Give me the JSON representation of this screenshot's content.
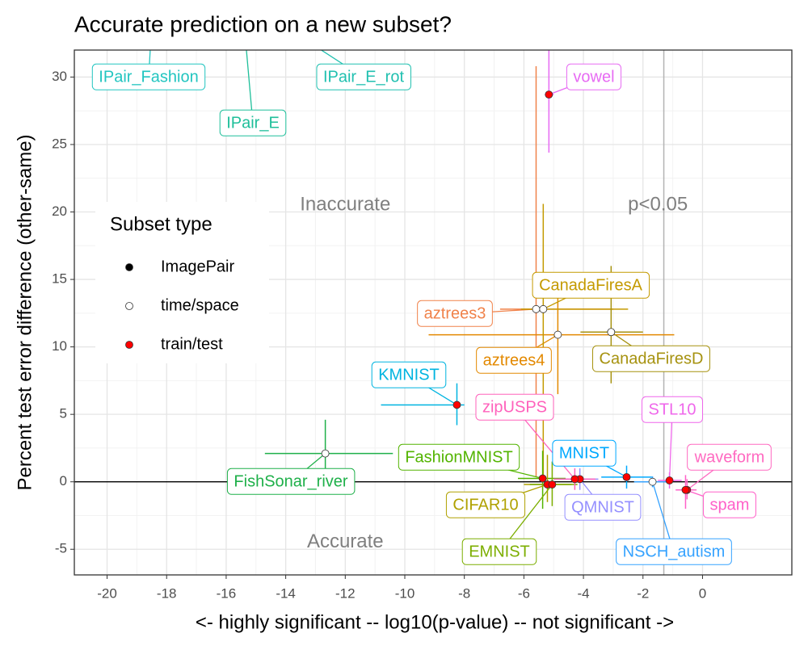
{
  "chart_data": {
    "type": "scatter",
    "title": "Accurate prediction on a new subset?",
    "x_label": "<- highly significant -- log10(p-value) -- not significant ->",
    "y_label": "Percent test error difference (other-same)",
    "xlim": [
      -21.1,
      3.0
    ],
    "ylim": [
      -6.9,
      32
    ],
    "xticks": [
      -20,
      -18,
      -16,
      -14,
      -12,
      -10,
      -8,
      -6,
      -4,
      -2,
      0
    ],
    "yticks": [
      -5,
      0,
      5,
      10,
      15,
      20,
      25,
      30
    ],
    "grid": true,
    "hline": 0,
    "vline": -1.3,
    "annotations": [
      {
        "text": "Inaccurate",
        "x": -12,
        "y": 20.5
      },
      {
        "text": "p<0.05",
        "x": -1.5,
        "y": 20.5
      },
      {
        "text": "Accurate",
        "x": -12,
        "y": -4.5
      }
    ],
    "legend": {
      "title": "Subset type",
      "items": [
        {
          "name": "ImagePair",
          "fill": "#000000"
        },
        {
          "name": "time/space",
          "fill": "#ffffff"
        },
        {
          "name": "train/test",
          "fill": "#ff0000"
        }
      ]
    },
    "series": [
      {
        "name": "vowel",
        "color": "#e76bf3",
        "subset": 2,
        "x": -5.16,
        "y": 28.7,
        "x_interval": [
          -5.3,
          -5.0
        ],
        "y_interval": [
          24.4,
          34
        ]
      },
      {
        "name": "aztrees3",
        "color": "#f0824a",
        "subset": 1,
        "x": -5.59,
        "y": 12.8,
        "x_interval": [
          -6.8,
          -3.0
        ],
        "y_interval": [
          0.4,
          30.8
        ]
      },
      {
        "name": "aztrees4",
        "color": "#e38900",
        "subset": 1,
        "x": -4.86,
        "y": 10.9,
        "x_interval": [
          -9.2,
          -0.95
        ],
        "y_interval": [
          6.5,
          14.5
        ]
      },
      {
        "name": "CanadaFiresA",
        "color": "#c49a00",
        "subset": 1,
        "x": -5.35,
        "y": 12.8,
        "x_interval": [
          -6.1,
          -2.5
        ],
        "y_interval": [
          0,
          20.6
        ]
      },
      {
        "name": "CanadaFiresD",
        "color": "#a6920f",
        "subset": 1,
        "x": -3.07,
        "y": 11.1,
        "x_interval": [
          -4.1,
          -2.0
        ],
        "y_interval": [
          7.3,
          16.0
        ]
      },
      {
        "name": "KMNIST",
        "color": "#00b4e0",
        "subset": 2,
        "x": -8.25,
        "y": 5.7,
        "x_interval": [
          -10.8,
          -8.0
        ],
        "y_interval": [
          4.2,
          7.3
        ]
      },
      {
        "name": "FishSonar_river",
        "color": "#1fb04a",
        "subset": 1,
        "x": -12.67,
        "y": 2.1,
        "x_interval": [
          -14.7,
          -10.4
        ],
        "y_interval": [
          -0.5,
          4.6
        ]
      },
      {
        "name": "FashionMNIST",
        "color": "#53b400",
        "subset": 2,
        "x": -5.37,
        "y": 0.25,
        "x_interval": [
          -6.2,
          -4.6
        ],
        "y_interval": [
          -2.0,
          2.3
        ]
      },
      {
        "name": "CIFAR10",
        "color": "#b0a100",
        "subset": 2,
        "x": -5.21,
        "y": -0.2,
        "x_interval": [
          -6.0,
          -4.4
        ],
        "y_interval": [
          -1.5,
          2.0
        ]
      },
      {
        "name": "EMNIST",
        "color": "#7cae00",
        "subset": 2,
        "x": -5.05,
        "y": -0.2,
        "x_interval": [
          -5.8,
          -4.2
        ],
        "y_interval": [
          -1.8,
          1.5
        ]
      },
      {
        "name": "MNIST",
        "color": "#00a9ff",
        "subset": 2,
        "x": -2.55,
        "y": 0.35,
        "x_interval": [
          -3.4,
          -1.7
        ],
        "y_interval": [
          -0.5,
          1.2
        ]
      },
      {
        "name": "QMNIST",
        "color": "#9590ff",
        "subset": 2,
        "x": -4.12,
        "y": 0.2,
        "x_interval": [
          -4.8,
          -3.5
        ],
        "y_interval": [
          -0.6,
          1.0
        ]
      },
      {
        "name": "zipUSPS",
        "color": "#ff62bc",
        "subset": 2,
        "x": -4.29,
        "y": 0.2,
        "x_interval": [
          -5.0,
          -3.6
        ],
        "y_interval": [
          -0.6,
          1.0
        ]
      },
      {
        "name": "STL10",
        "color": "#ef67eb",
        "subset": 2,
        "x": -1.11,
        "y": 0.1,
        "x_interval": [
          -1.5,
          -0.7
        ],
        "y_interval": [
          -0.5,
          0.7
        ]
      },
      {
        "name": "NSCH_autism",
        "color": "#35a2ff",
        "subset": 1,
        "x": -1.68,
        "y": 0.0,
        "x_interval": [
          -2.3,
          -1.1
        ],
        "y_interval": [
          -0.4,
          0.4
        ]
      },
      {
        "name": "waveform",
        "color": "#ff6ac1",
        "subset": 2,
        "x": -0.52,
        "y": -0.6,
        "x_interval": [
          -0.9,
          -0.2
        ],
        "y_interval": [
          -1.3,
          0.2
        ]
      },
      {
        "name": "spam",
        "color": "#ff61c9",
        "subset": 2,
        "x": -0.57,
        "y": -0.6,
        "x_interval": [
          -0.9,
          -0.3
        ],
        "y_interval": [
          -2.0,
          0.5
        ]
      },
      {
        "name": "IPair_Fashion",
        "color": "#22c5c0",
        "subset": 0,
        "x": -18.5,
        "y": 34,
        "x_interval": [
          -19.0,
          -18.0
        ],
        "y_interval": [
          33,
          35
        ]
      },
      {
        "name": "IPair_E",
        "color": "#1fbf9a",
        "subset": 0,
        "x": -15.4,
        "y": 34,
        "x_interval": [
          -16.0,
          -14.8
        ],
        "y_interval": [
          33,
          35
        ]
      },
      {
        "name": "IPair_E_rot",
        "color": "#20c0b0",
        "subset": 0,
        "x": -14.2,
        "y": 34,
        "x_interval": [
          -14.8,
          -13.6
        ],
        "y_interval": [
          33,
          35
        ]
      }
    ]
  }
}
